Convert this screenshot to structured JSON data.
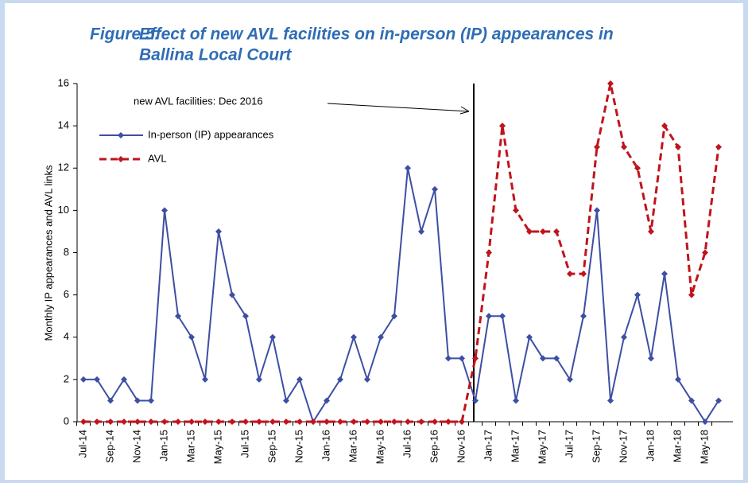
{
  "chart_data": {
    "type": "line",
    "title": [
      "Figure 5.",
      "Effect of new AVL facilities on in-person (IP) appearances in",
      "Ballina Local Court"
    ],
    "y_label": "Monthly IP appearances and AVL links",
    "annotation": "new AVL facilities: Dec 2016",
    "categories": [
      "Jul-14",
      null,
      "Sep-14",
      null,
      "Nov-14",
      null,
      "Jan-15",
      null,
      "Mar-15",
      null,
      "May-15",
      null,
      "Jul-15",
      null,
      "Sep-15",
      null,
      "Nov-15",
      null,
      "Jan-16",
      null,
      "Mar-16",
      null,
      "May-16",
      null,
      "Jul-16",
      null,
      "Sep-16",
      null,
      "Nov-16",
      null,
      "Jan-17",
      null,
      "Mar-17",
      null,
      "May-17",
      null,
      "Jul-17",
      null,
      "Sep-17",
      null,
      "Nov-17",
      null,
      "Jan-18",
      null,
      "Mar-18",
      null,
      "May-18",
      null
    ],
    "series": [
      {
        "name": "In-person (IP) appearances",
        "color": "#3d4fa3",
        "dashed": false,
        "values": [
          2,
          2,
          1,
          2,
          1,
          1,
          10,
          5,
          4,
          2,
          9,
          6,
          5,
          2,
          4,
          1,
          2,
          0,
          1,
          2,
          4,
          2,
          4,
          5,
          12,
          9,
          11,
          3,
          3,
          1,
          5,
          5,
          1,
          4,
          3,
          3,
          2,
          5,
          10,
          1,
          4,
          6,
          3,
          7,
          2,
          1,
          0,
          1
        ]
      },
      {
        "name": "AVL",
        "color": "#c0141c",
        "dashed": true,
        "values": [
          0,
          0,
          0,
          0,
          0,
          0,
          0,
          0,
          0,
          0,
          0,
          0,
          0,
          0,
          0,
          0,
          0,
          0,
          0,
          0,
          0,
          0,
          0,
          0,
          0,
          0,
          0,
          0,
          0,
          3,
          8,
          14,
          10,
          9,
          9,
          9,
          7,
          7,
          13,
          16,
          13,
          12,
          9,
          14,
          13,
          6,
          8,
          13
        ]
      }
    ],
    "ylim": [
      0,
      16
    ],
    "yticks": [
      0,
      2,
      4,
      6,
      8,
      10,
      12,
      14,
      16
    ],
    "grid": false
  }
}
